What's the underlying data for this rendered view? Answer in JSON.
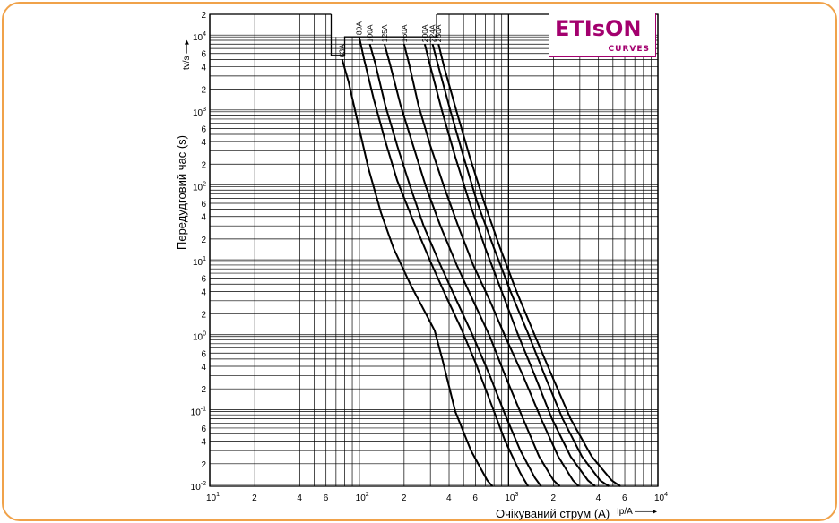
{
  "logo": {
    "text": "ETIsON",
    "sub": "CURVES"
  },
  "chart_data": {
    "type": "line",
    "title": "",
    "xlabel": "Очікуваний струм (A)",
    "xlabel_symbol": "Ip/A",
    "ylabel": "Передудговий час (s)",
    "ylabel_symbol": "tv/s",
    "x_scale": "log",
    "y_scale": "log",
    "xlim": [
      10,
      10000
    ],
    "ylim": [
      0.01,
      20000
    ],
    "grid": true,
    "x_ticks": [
      {
        "v": 10,
        "label": "10",
        "sup": "1"
      },
      {
        "v": 20,
        "label": "2",
        "sup": ""
      },
      {
        "v": 40,
        "label": "4",
        "sup": ""
      },
      {
        "v": 60,
        "label": "6",
        "sup": ""
      },
      {
        "v": 100,
        "label": "10",
        "sup": "2"
      },
      {
        "v": 200,
        "label": "2",
        "sup": ""
      },
      {
        "v": 400,
        "label": "4",
        "sup": ""
      },
      {
        "v": 600,
        "label": "6",
        "sup": ""
      },
      {
        "v": 1000,
        "label": "10",
        "sup": "3"
      },
      {
        "v": 2000,
        "label": "2",
        "sup": ""
      },
      {
        "v": 4000,
        "label": "4",
        "sup": ""
      },
      {
        "v": 6000,
        "label": "6",
        "sup": ""
      },
      {
        "v": 10000,
        "label": "10",
        "sup": "4"
      }
    ],
    "y_ticks": [
      {
        "v": 20000,
        "label": "2",
        "sup": ""
      },
      {
        "v": 10000,
        "label": "10",
        "sup": "4"
      },
      {
        "v": 6000,
        "label": "6",
        "sup": ""
      },
      {
        "v": 4000,
        "label": "4",
        "sup": ""
      },
      {
        "v": 2000,
        "label": "2",
        "sup": ""
      },
      {
        "v": 1000,
        "label": "10",
        "sup": "3"
      },
      {
        "v": 600,
        "label": "6",
        "sup": ""
      },
      {
        "v": 400,
        "label": "4",
        "sup": ""
      },
      {
        "v": 200,
        "label": "2",
        "sup": ""
      },
      {
        "v": 100,
        "label": "10",
        "sup": "2"
      },
      {
        "v": 60,
        "label": "6",
        "sup": ""
      },
      {
        "v": 40,
        "label": "4",
        "sup": ""
      },
      {
        "v": 20,
        "label": "2",
        "sup": ""
      },
      {
        "v": 10,
        "label": "10",
        "sup": "1"
      },
      {
        "v": 6,
        "label": "6",
        "sup": ""
      },
      {
        "v": 4,
        "label": "4",
        "sup": ""
      },
      {
        "v": 2,
        "label": "2",
        "sup": ""
      },
      {
        "v": 1,
        "label": "10",
        "sup": "0"
      },
      {
        "v": 0.6,
        "label": "6",
        "sup": ""
      },
      {
        "v": 0.4,
        "label": "4",
        "sup": ""
      },
      {
        "v": 0.2,
        "label": "2",
        "sup": ""
      },
      {
        "v": 0.1,
        "label": "10",
        "sup": "-1"
      },
      {
        "v": 0.06,
        "label": "6",
        "sup": ""
      },
      {
        "v": 0.04,
        "label": "4",
        "sup": ""
      },
      {
        "v": 0.02,
        "label": "2",
        "sup": ""
      },
      {
        "v": 0.01,
        "label": "10",
        "sup": "-2"
      }
    ],
    "series": [
      {
        "name": "63A",
        "points": [
          [
            77,
            5000
          ],
          [
            85,
            2500
          ],
          [
            100,
            600
          ],
          [
            115,
            180
          ],
          [
            140,
            45
          ],
          [
            170,
            15
          ],
          [
            220,
            5
          ],
          [
            280,
            2
          ],
          [
            320,
            1.2
          ],
          [
            360,
            0.5
          ],
          [
            440,
            0.1
          ],
          [
            560,
            0.03
          ],
          [
            720,
            0.012
          ],
          [
            780,
            0.01
          ]
        ]
      },
      {
        "name": "80A",
        "points": [
          [
            100,
            10000
          ],
          [
            108,
            5000
          ],
          [
            125,
            1500
          ],
          [
            150,
            400
          ],
          [
            180,
            120
          ],
          [
            230,
            35
          ],
          [
            300,
            10
          ],
          [
            380,
            3.5
          ],
          [
            480,
            1.3
          ],
          [
            600,
            0.45
          ],
          [
            760,
            0.13
          ],
          [
            950,
            0.04
          ],
          [
            1200,
            0.015
          ],
          [
            1350,
            0.01
          ]
        ]
      },
      {
        "name": "100A",
        "points": [
          [
            118,
            8000
          ],
          [
            128,
            4500
          ],
          [
            150,
            1200
          ],
          [
            180,
            350
          ],
          [
            220,
            100
          ],
          [
            270,
            30
          ],
          [
            350,
            9
          ],
          [
            450,
            3
          ],
          [
            580,
            1
          ],
          [
            750,
            0.3
          ],
          [
            950,
            0.09
          ],
          [
            1200,
            0.03
          ],
          [
            1500,
            0.013
          ],
          [
            1650,
            0.01
          ]
        ]
      },
      {
        "name": "125A",
        "points": [
          [
            148,
            8000
          ],
          [
            160,
            4500
          ],
          [
            190,
            1200
          ],
          [
            230,
            350
          ],
          [
            280,
            100
          ],
          [
            350,
            30
          ],
          [
            450,
            9
          ],
          [
            580,
            3
          ],
          [
            750,
            1
          ],
          [
            950,
            0.3
          ],
          [
            1250,
            0.08
          ],
          [
            1600,
            0.025
          ],
          [
            2000,
            0.012
          ],
          [
            2200,
            0.01
          ]
        ]
      },
      {
        "name": "160A",
        "points": [
          [
            200,
            8000
          ],
          [
            215,
            4500
          ],
          [
            250,
            1200
          ],
          [
            300,
            350
          ],
          [
            370,
            100
          ],
          [
            460,
            30
          ],
          [
            580,
            9
          ],
          [
            750,
            3
          ],
          [
            950,
            1
          ],
          [
            1250,
            0.3
          ],
          [
            1650,
            0.08
          ],
          [
            2150,
            0.025
          ],
          [
            2700,
            0.012
          ],
          [
            2950,
            0.01
          ]
        ]
      },
      {
        "name": "200A",
        "points": [
          [
            275,
            8000
          ],
          [
            300,
            4000
          ],
          [
            360,
            1000
          ],
          [
            440,
            250
          ],
          [
            550,
            60
          ],
          [
            700,
            15
          ],
          [
            900,
            4
          ],
          [
            1150,
            1.1
          ],
          [
            1500,
            0.3
          ],
          [
            1950,
            0.08
          ],
          [
            2600,
            0.025
          ],
          [
            3400,
            0.012
          ],
          [
            3800,
            0.01
          ]
        ]
      },
      {
        "name": "224A",
        "points": [
          [
            310,
            8000
          ],
          [
            340,
            4000
          ],
          [
            410,
            1000
          ],
          [
            500,
            250
          ],
          [
            620,
            60
          ],
          [
            800,
            15
          ],
          [
            1030,
            4
          ],
          [
            1350,
            1.1
          ],
          [
            1750,
            0.3
          ],
          [
            2300,
            0.08
          ],
          [
            3100,
            0.025
          ],
          [
            4100,
            0.012
          ],
          [
            4700,
            0.01
          ]
        ]
      },
      {
        "name": "250A",
        "points": [
          [
            340,
            8000
          ],
          [
            370,
            4000
          ],
          [
            450,
            1000
          ],
          [
            550,
            250
          ],
          [
            690,
            60
          ],
          [
            880,
            15
          ],
          [
            1130,
            4
          ],
          [
            1480,
            1.1
          ],
          [
            1950,
            0.3
          ],
          [
            2600,
            0.08
          ],
          [
            3600,
            0.025
          ],
          [
            4900,
            0.012
          ],
          [
            5600,
            0.01
          ]
        ]
      }
    ]
  }
}
